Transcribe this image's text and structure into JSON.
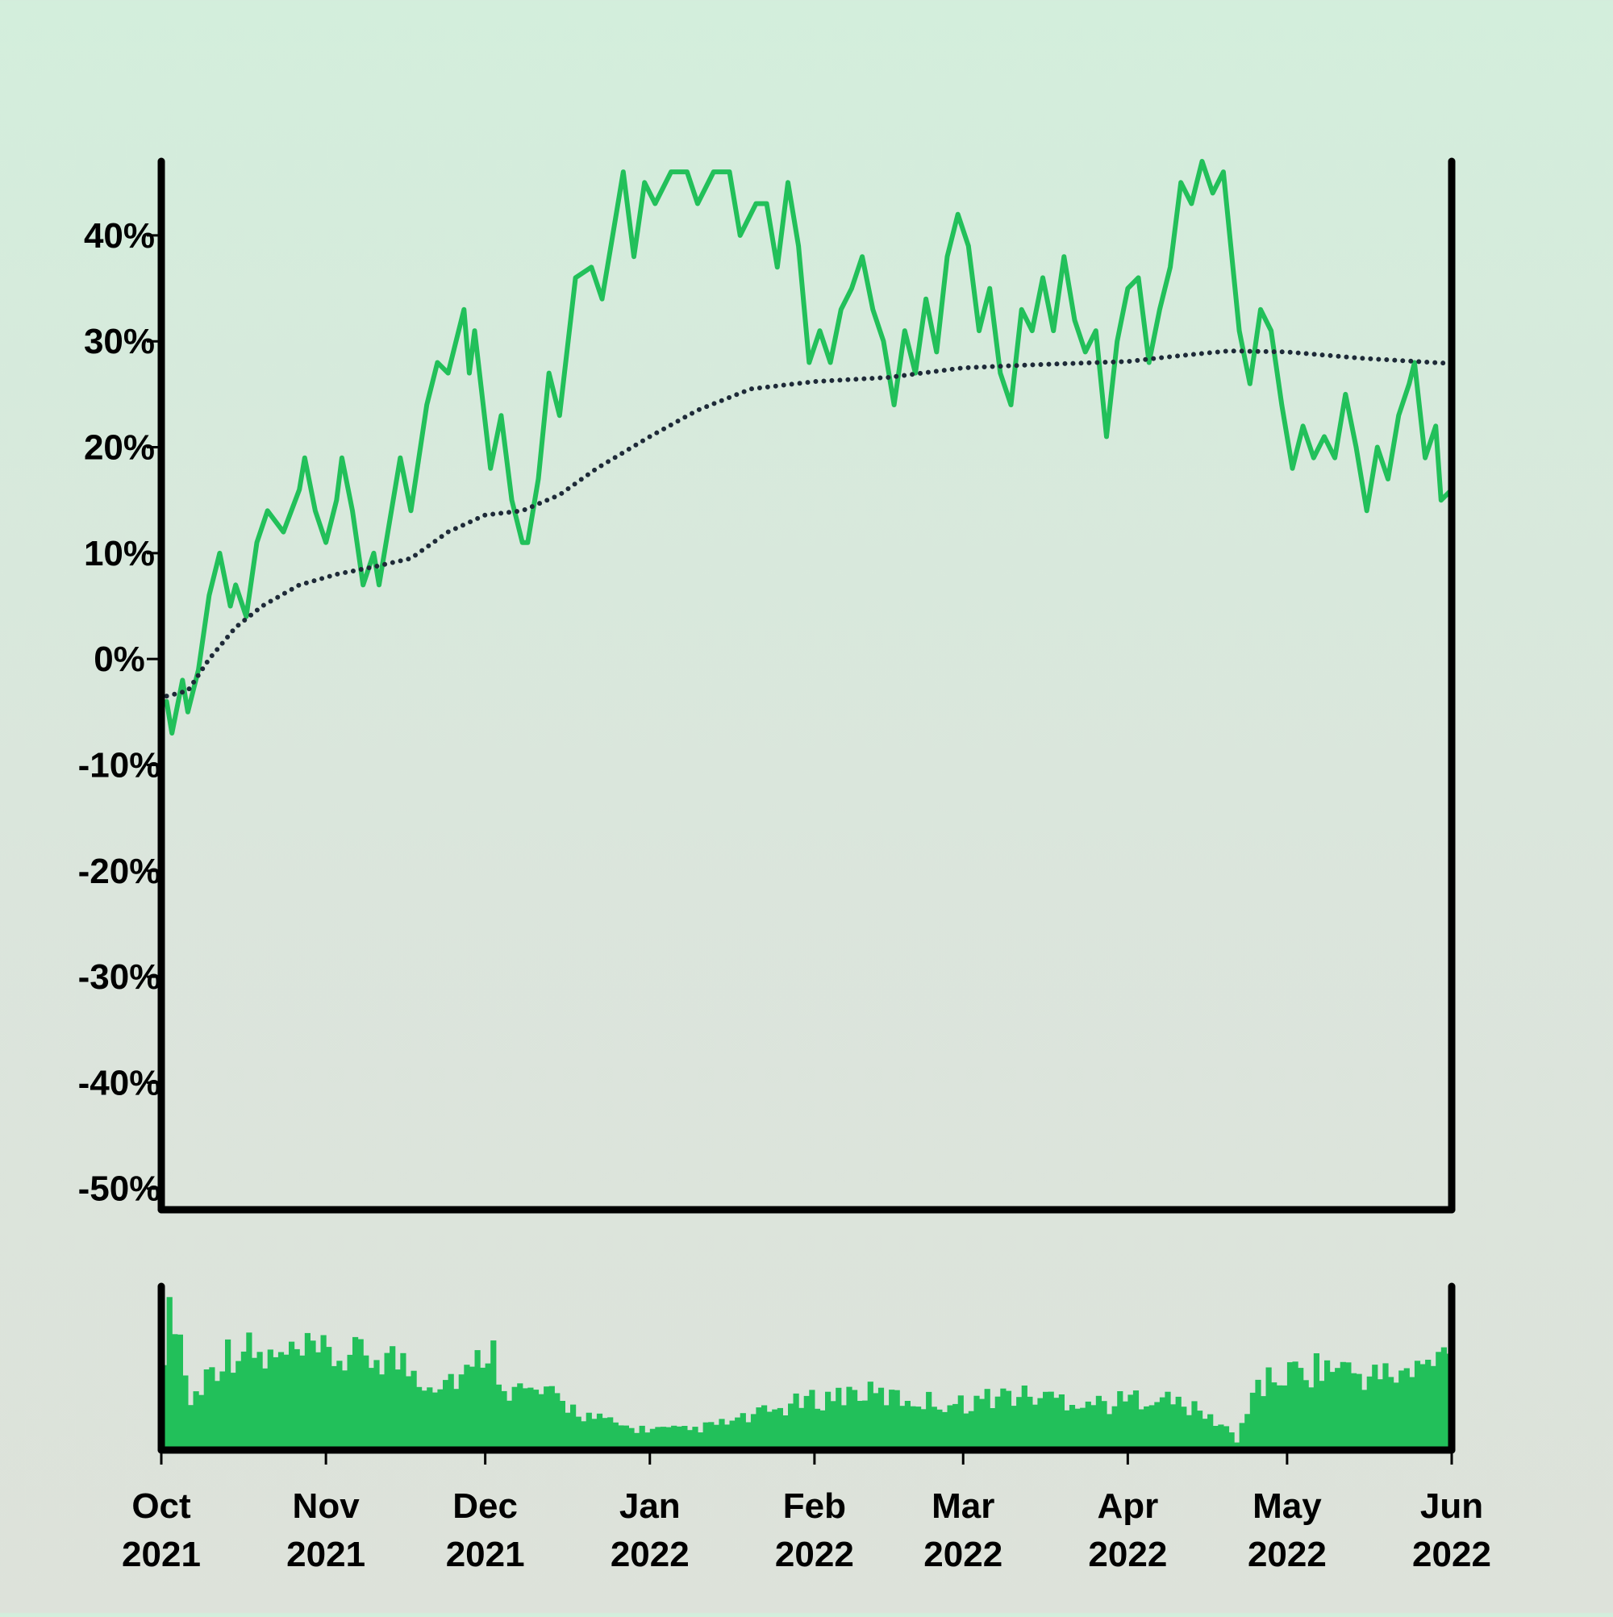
{
  "chart_data": {
    "type": "line",
    "x_start": "2021-10-01",
    "x_end": "2022-06-01",
    "xlim": [
      "2021-10-01",
      "2022-06-01"
    ],
    "ylim": [
      -0.52,
      0.47
    ],
    "y_ticks": [
      "40%",
      "30%",
      "20%",
      "10%",
      "0%",
      "-10%",
      "-20%",
      "-30%",
      "-40%",
      "-50%"
    ],
    "y_tick_values": [
      0.4,
      0.3,
      0.2,
      0.1,
      0.0,
      -0.1,
      -0.2,
      -0.3,
      -0.4,
      -0.5
    ],
    "x_ticks": [
      {
        "month": "Oct",
        "year": "2021",
        "date": "2021-10-01"
      },
      {
        "month": "Nov",
        "year": "2021",
        "date": "2021-11-01"
      },
      {
        "month": "Dec",
        "year": "2021",
        "date": "2021-12-01"
      },
      {
        "month": "Jan",
        "year": "2022",
        "date": "2022-01-01"
      },
      {
        "month": "Feb",
        "year": "2022",
        "date": "2022-02-01"
      },
      {
        "month": "Mar",
        "year": "2022",
        "date": "2022-03-01"
      },
      {
        "month": "Apr",
        "year": "2022",
        "date": "2022-04-01"
      },
      {
        "month": "May",
        "year": "2022",
        "date": "2022-05-01"
      },
      {
        "month": "Jun",
        "year": "2022",
        "date": "2022-06-01"
      }
    ],
    "series": [
      {
        "style": "solid",
        "color": "#22c05a",
        "points": [
          [
            "2021-10-02",
            -0.04
          ],
          [
            "2021-10-03",
            -0.07
          ],
          [
            "2021-10-05",
            -0.02
          ],
          [
            "2021-10-06",
            -0.05
          ],
          [
            "2021-10-08",
            -0.01
          ],
          [
            "2021-10-10",
            0.06
          ],
          [
            "2021-10-12",
            0.1
          ],
          [
            "2021-10-14",
            0.05
          ],
          [
            "2021-10-15",
            0.07
          ],
          [
            "2021-10-17",
            0.04
          ],
          [
            "2021-10-19",
            0.11
          ],
          [
            "2021-10-21",
            0.14
          ],
          [
            "2021-10-24",
            0.12
          ],
          [
            "2021-10-27",
            0.16
          ],
          [
            "2021-10-28",
            0.19
          ],
          [
            "2021-10-30",
            0.14
          ],
          [
            "2021-11-01",
            0.11
          ],
          [
            "2021-11-03",
            0.15
          ],
          [
            "2021-11-04",
            0.19
          ],
          [
            "2021-11-06",
            0.14
          ],
          [
            "2021-11-08",
            0.07
          ],
          [
            "2021-11-10",
            0.1
          ],
          [
            "2021-11-11",
            0.07
          ],
          [
            "2021-11-13",
            0.13
          ],
          [
            "2021-11-15",
            0.19
          ],
          [
            "2021-11-17",
            0.14
          ],
          [
            "2021-11-20",
            0.24
          ],
          [
            "2021-11-22",
            0.28
          ],
          [
            "2021-11-24",
            0.27
          ],
          [
            "2021-11-27",
            0.33
          ],
          [
            "2021-11-28",
            0.27
          ],
          [
            "2021-11-29",
            0.31
          ],
          [
            "2021-12-02",
            0.18
          ],
          [
            "2021-12-04",
            0.23
          ],
          [
            "2021-12-06",
            0.15
          ],
          [
            "2021-12-08",
            0.11
          ],
          [
            "2021-12-09",
            0.11
          ],
          [
            "2021-12-11",
            0.17
          ],
          [
            "2021-12-13",
            0.27
          ],
          [
            "2021-12-15",
            0.23
          ],
          [
            "2021-12-18",
            0.36
          ],
          [
            "2021-12-21",
            0.37
          ],
          [
            "2021-12-23",
            0.34
          ],
          [
            "2021-12-25",
            0.4
          ],
          [
            "2021-12-27",
            0.46
          ],
          [
            "2021-12-29",
            0.38
          ],
          [
            "2021-12-31",
            0.45
          ],
          [
            "2022-01-02",
            0.43
          ],
          [
            "2022-01-05",
            0.46
          ],
          [
            "2022-01-08",
            0.46
          ],
          [
            "2022-01-10",
            0.43
          ],
          [
            "2022-01-13",
            0.46
          ],
          [
            "2022-01-16",
            0.46
          ],
          [
            "2022-01-18",
            0.4
          ],
          [
            "2022-01-21",
            0.43
          ],
          [
            "2022-01-23",
            0.43
          ],
          [
            "2022-01-25",
            0.37
          ],
          [
            "2022-01-27",
            0.45
          ],
          [
            "2022-01-29",
            0.39
          ],
          [
            "2022-01-31",
            0.28
          ],
          [
            "2022-02-02",
            0.31
          ],
          [
            "2022-02-04",
            0.28
          ],
          [
            "2022-02-06",
            0.33
          ],
          [
            "2022-02-08",
            0.35
          ],
          [
            "2022-02-10",
            0.38
          ],
          [
            "2022-02-12",
            0.33
          ],
          [
            "2022-02-14",
            0.3
          ],
          [
            "2022-02-16",
            0.24
          ],
          [
            "2022-02-18",
            0.31
          ],
          [
            "2022-02-20",
            0.27
          ],
          [
            "2022-02-22",
            0.34
          ],
          [
            "2022-02-24",
            0.29
          ],
          [
            "2022-02-26",
            0.38
          ],
          [
            "2022-02-28",
            0.42
          ],
          [
            "2022-03-02",
            0.39
          ],
          [
            "2022-03-04",
            0.31
          ],
          [
            "2022-03-06",
            0.35
          ],
          [
            "2022-03-08",
            0.27
          ],
          [
            "2022-03-10",
            0.24
          ],
          [
            "2022-03-12",
            0.33
          ],
          [
            "2022-03-14",
            0.31
          ],
          [
            "2022-03-16",
            0.36
          ],
          [
            "2022-03-18",
            0.31
          ],
          [
            "2022-03-20",
            0.38
          ],
          [
            "2022-03-22",
            0.32
          ],
          [
            "2022-03-24",
            0.29
          ],
          [
            "2022-03-26",
            0.31
          ],
          [
            "2022-03-28",
            0.21
          ],
          [
            "2022-03-30",
            0.3
          ],
          [
            "2022-04-01",
            0.35
          ],
          [
            "2022-04-03",
            0.36
          ],
          [
            "2022-04-05",
            0.28
          ],
          [
            "2022-04-07",
            0.33
          ],
          [
            "2022-04-09",
            0.37
          ],
          [
            "2022-04-11",
            0.45
          ],
          [
            "2022-04-13",
            0.43
          ],
          [
            "2022-04-15",
            0.47
          ],
          [
            "2022-04-17",
            0.44
          ],
          [
            "2022-04-19",
            0.46
          ],
          [
            "2022-04-22",
            0.31
          ],
          [
            "2022-04-24",
            0.26
          ],
          [
            "2022-04-26",
            0.33
          ],
          [
            "2022-04-28",
            0.31
          ],
          [
            "2022-04-30",
            0.24
          ],
          [
            "2022-05-02",
            0.18
          ],
          [
            "2022-05-04",
            0.22
          ],
          [
            "2022-05-06",
            0.19
          ],
          [
            "2022-05-08",
            0.21
          ],
          [
            "2022-05-10",
            0.19
          ],
          [
            "2022-05-12",
            0.25
          ],
          [
            "2022-05-14",
            0.2
          ],
          [
            "2022-05-16",
            0.14
          ],
          [
            "2022-05-18",
            0.2
          ],
          [
            "2022-05-20",
            0.17
          ],
          [
            "2022-05-22",
            0.23
          ],
          [
            "2022-05-24",
            0.26
          ],
          [
            "2022-05-25",
            0.28
          ],
          [
            "2022-05-27",
            0.19
          ],
          [
            "2022-05-29",
            0.22
          ],
          [
            "2022-05-30",
            0.15
          ],
          [
            "2022-06-01",
            0.16
          ]
        ]
      },
      {
        "style": "dotted",
        "color": "#1e2a38",
        "points": [
          [
            "2021-10-02",
            -0.035
          ],
          [
            "2021-10-06",
            -0.03
          ],
          [
            "2021-10-10",
            0.0
          ],
          [
            "2021-10-15",
            0.03
          ],
          [
            "2021-10-20",
            0.05
          ],
          [
            "2021-10-27",
            0.07
          ],
          [
            "2021-11-03",
            0.08
          ],
          [
            "2021-11-10",
            0.087
          ],
          [
            "2021-11-17",
            0.095
          ],
          [
            "2021-11-24",
            0.12
          ],
          [
            "2021-12-01",
            0.136
          ],
          [
            "2021-12-08",
            0.14
          ],
          [
            "2021-12-15",
            0.155
          ],
          [
            "2021-12-22",
            0.18
          ],
          [
            "2022-01-01",
            0.21
          ],
          [
            "2022-01-10",
            0.235
          ],
          [
            "2022-01-20",
            0.255
          ],
          [
            "2022-02-01",
            0.262
          ],
          [
            "2022-02-15",
            0.266
          ],
          [
            "2022-03-01",
            0.275
          ],
          [
            "2022-03-15",
            0.278
          ],
          [
            "2022-04-01",
            0.281
          ],
          [
            "2022-04-10",
            0.286
          ],
          [
            "2022-04-20",
            0.291
          ],
          [
            "2022-05-01",
            0.29
          ],
          [
            "2022-05-15",
            0.284
          ],
          [
            "2022-06-01",
            0.279
          ]
        ]
      }
    ],
    "volume": {
      "color": "#22c05a",
      "max": 1.0,
      "anchors": [
        [
          "2021-10-01",
          0.72
        ],
        [
          "2021-10-03",
          0.95
        ],
        [
          "2021-10-06",
          0.3
        ],
        [
          "2021-10-10",
          0.55
        ],
        [
          "2021-10-15",
          0.68
        ],
        [
          "2021-10-20",
          0.58
        ],
        [
          "2021-10-28",
          0.62
        ],
        [
          "2021-11-05",
          0.6
        ],
        [
          "2021-11-12",
          0.62
        ],
        [
          "2021-11-20",
          0.45
        ],
        [
          "2021-11-28",
          0.5
        ],
        [
          "2021-12-01",
          0.7
        ],
        [
          "2021-12-05",
          0.4
        ],
        [
          "2021-12-12",
          0.36
        ],
        [
          "2021-12-20",
          0.22
        ],
        [
          "2021-12-28",
          0.14
        ],
        [
          "2022-01-08",
          0.13
        ],
        [
          "2022-01-18",
          0.2
        ],
        [
          "2022-01-28",
          0.3
        ],
        [
          "2022-02-08",
          0.38
        ],
        [
          "2022-02-18",
          0.33
        ],
        [
          "2022-02-28",
          0.3
        ],
        [
          "2022-03-08",
          0.36
        ],
        [
          "2022-03-18",
          0.34
        ],
        [
          "2022-03-28",
          0.3
        ],
        [
          "2022-04-05",
          0.36
        ],
        [
          "2022-04-12",
          0.28
        ],
        [
          "2022-04-19",
          0.15
        ],
        [
          "2022-04-21",
          0.05
        ],
        [
          "2022-04-24",
          0.4
        ],
        [
          "2022-05-01",
          0.5
        ],
        [
          "2022-05-08",
          0.55
        ],
        [
          "2022-05-16",
          0.48
        ],
        [
          "2022-05-24",
          0.5
        ],
        [
          "2022-06-01",
          0.65
        ]
      ]
    }
  }
}
